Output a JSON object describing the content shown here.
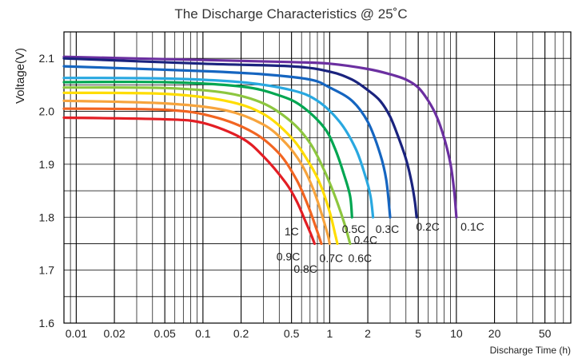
{
  "chart_data": {
    "type": "line",
    "title": "The Discharge Characteristics @ 25˚C",
    "xlabel": "Discharge Time (h)",
    "ylabel": "Voltage(V)",
    "x_scale": "log",
    "xlim": [
      0.008,
      80
    ],
    "ylim": [
      1.6,
      2.15
    ],
    "grid": true,
    "legend": "inline labels at curve ends",
    "x_ticks": [
      0.01,
      0.02,
      0.05,
      0.1,
      0.2,
      0.5,
      1,
      2,
      5,
      10,
      20,
      50
    ],
    "x_tick_labels": [
      "0.01",
      "0.02",
      "0.05",
      "0.1",
      "0.2",
      "0.5",
      "1",
      "2",
      "5",
      "10",
      "20",
      "50"
    ],
    "y_ticks": [
      1.6,
      1.7,
      1.8,
      1.9,
      2.0,
      2.1
    ],
    "y_tick_labels": [
      "1.6",
      "1.7",
      "1.8",
      "1.9",
      "2.0",
      "2.1"
    ],
    "series": [
      {
        "name": "0.1C",
        "color": "#6b2fa0",
        "points": [
          [
            0.008,
            2.103
          ],
          [
            0.1,
            2.097
          ],
          [
            0.5,
            2.093
          ],
          [
            1,
            2.09
          ],
          [
            2,
            2.08
          ],
          [
            3,
            2.07
          ],
          [
            4,
            2.06
          ],
          [
            5,
            2.045
          ],
          [
            6,
            2.02
          ],
          [
            7,
            1.99
          ],
          [
            8,
            1.95
          ],
          [
            9,
            1.9
          ],
          [
            9.6,
            1.85
          ],
          [
            10,
            1.8
          ]
        ]
      },
      {
        "name": "0.2C",
        "color": "#1a237e",
        "points": [
          [
            0.008,
            2.1
          ],
          [
            0.1,
            2.09
          ],
          [
            0.5,
            2.085
          ],
          [
            1,
            2.075
          ],
          [
            1.5,
            2.06
          ],
          [
            2,
            2.04
          ],
          [
            2.5,
            2.02
          ],
          [
            3,
            1.99
          ],
          [
            3.5,
            1.95
          ],
          [
            4,
            1.91
          ],
          [
            4.4,
            1.87
          ],
          [
            4.7,
            1.83
          ],
          [
            4.85,
            1.8
          ]
        ]
      },
      {
        "name": "0.3C",
        "color": "#1565c0",
        "points": [
          [
            0.008,
            2.085
          ],
          [
            0.1,
            2.076
          ],
          [
            0.3,
            2.07
          ],
          [
            0.7,
            2.06
          ],
          [
            1,
            2.045
          ],
          [
            1.5,
            2.02
          ],
          [
            2,
            1.98
          ],
          [
            2.5,
            1.92
          ],
          [
            2.8,
            1.87
          ],
          [
            3,
            1.8
          ]
        ]
      },
      {
        "name": "0.4C",
        "color": "#29a8e0",
        "points": [
          [
            0.008,
            2.063
          ],
          [
            0.05,
            2.062
          ],
          [
            0.2,
            2.055
          ],
          [
            0.5,
            2.04
          ],
          [
            0.8,
            2.02
          ],
          [
            1.2,
            1.98
          ],
          [
            1.6,
            1.93
          ],
          [
            1.9,
            1.88
          ],
          [
            2.1,
            1.84
          ],
          [
            2.2,
            1.8
          ]
        ]
      },
      {
        "name": "0.5C",
        "color": "#00a651",
        "points": [
          [
            0.008,
            2.055
          ],
          [
            0.05,
            2.055
          ],
          [
            0.2,
            2.047
          ],
          [
            0.4,
            2.03
          ],
          [
            0.6,
            2.01
          ],
          [
            0.9,
            1.97
          ],
          [
            1.1,
            1.93
          ],
          [
            1.3,
            1.88
          ],
          [
            1.45,
            1.84
          ],
          [
            1.5,
            1.8
          ]
        ]
      },
      {
        "name": "0.6C",
        "color": "#8dc63f",
        "points": [
          [
            0.008,
            2.045
          ],
          [
            0.05,
            2.044
          ],
          [
            0.15,
            2.035
          ],
          [
            0.3,
            2.015
          ],
          [
            0.5,
            1.98
          ],
          [
            0.7,
            1.94
          ],
          [
            0.9,
            1.89
          ],
          [
            1.1,
            1.84
          ],
          [
            1.3,
            1.79
          ],
          [
            1.45,
            1.75
          ]
        ]
      },
      {
        "name": "0.7C",
        "color": "#ffdd00",
        "points": [
          [
            0.008,
            2.035
          ],
          [
            0.05,
            2.033
          ],
          [
            0.15,
            2.02
          ],
          [
            0.3,
            1.995
          ],
          [
            0.5,
            1.95
          ],
          [
            0.7,
            1.9
          ],
          [
            0.85,
            1.86
          ],
          [
            1,
            1.81
          ],
          [
            1.1,
            1.77
          ],
          [
            1.15,
            1.75
          ]
        ]
      },
      {
        "name": "0.8C",
        "color": "#f7a43d",
        "points": [
          [
            0.008,
            2.02
          ],
          [
            0.05,
            2.015
          ],
          [
            0.15,
            2.002
          ],
          [
            0.3,
            1.975
          ],
          [
            0.45,
            1.94
          ],
          [
            0.6,
            1.9
          ],
          [
            0.75,
            1.85
          ],
          [
            0.88,
            1.8
          ],
          [
            0.97,
            1.765
          ],
          [
            1,
            1.75
          ]
        ]
      },
      {
        "name": "0.9C",
        "color": "#f26522",
        "points": [
          [
            0.008,
            2.005
          ],
          [
            0.05,
            2.003
          ],
          [
            0.12,
            1.99
          ],
          [
            0.25,
            1.96
          ],
          [
            0.4,
            1.92
          ],
          [
            0.55,
            1.87
          ],
          [
            0.68,
            1.82
          ],
          [
            0.78,
            1.78
          ],
          [
            0.86,
            1.75
          ]
        ]
      },
      {
        "name": "1C",
        "color": "#e31e24",
        "points": [
          [
            0.008,
            1.988
          ],
          [
            0.05,
            1.985
          ],
          [
            0.1,
            1.978
          ],
          [
            0.2,
            1.95
          ],
          [
            0.3,
            1.915
          ],
          [
            0.45,
            1.865
          ],
          [
            0.55,
            1.83
          ],
          [
            0.65,
            1.79
          ],
          [
            0.72,
            1.765
          ],
          [
            0.76,
            1.75
          ]
        ]
      }
    ],
    "label_positions": [
      {
        "name": "0.1C",
        "x": 10.8,
        "y": 1.775
      },
      {
        "name": "0.2C",
        "x": 4.8,
        "y": 1.775
      },
      {
        "name": "0.3C",
        "x": 2.3,
        "y": 1.77
      },
      {
        "name": "0.4C",
        "x": 1.55,
        "y": 1.75
      },
      {
        "name": "0.5C",
        "x": 1.25,
        "y": 1.77
      },
      {
        "name": "0.6C",
        "x": 1.4,
        "y": 1.715
      },
      {
        "name": "0.7C",
        "x": 0.83,
        "y": 1.715
      },
      {
        "name": "0.8C",
        "x": 0.52,
        "y": 1.695
      },
      {
        "name": "0.9C",
        "x": 0.38,
        "y": 1.718
      },
      {
        "name": "1C",
        "x": 0.44,
        "y": 1.766
      }
    ]
  }
}
